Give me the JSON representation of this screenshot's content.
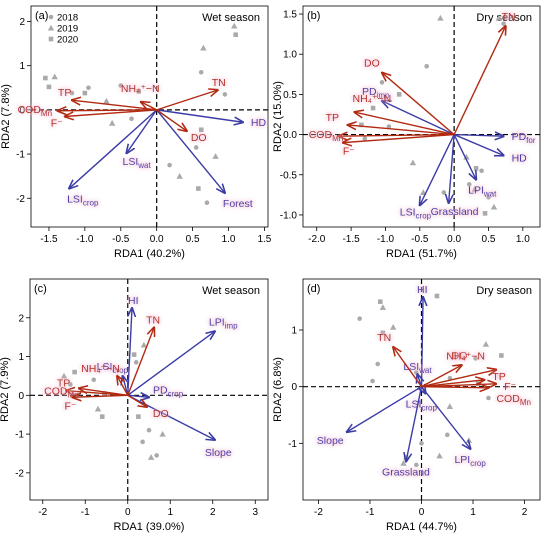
{
  "chart_data": [
    {
      "type": "scatter",
      "panel_label": "(a)",
      "season": "Wet season",
      "xlabel": "RDA1 (40.2%)",
      "ylabel": "RDA2 (7.8%)",
      "xlim": [
        -1.75,
        1.55
      ],
      "ylim": [
        -2.65,
        2.35
      ],
      "xticks": [
        -1.5,
        -1.0,
        -0.5,
        0.0,
        0.5,
        1.0,
        1.5
      ],
      "yticks": [
        -2,
        -1,
        0,
        1,
        2
      ],
      "tick_decimals_x": 1,
      "tick_decimals_y": 0,
      "legend": {
        "placement": "top-left",
        "entries": [
          {
            "label": "2018",
            "marker": "circle"
          },
          {
            "label": "2019",
            "marker": "triangle"
          },
          {
            "label": "2020",
            "marker": "square"
          }
        ]
      },
      "response_arrows": [
        {
          "label": "TN",
          "x": 0.85,
          "y": 0.45
        },
        {
          "label": "TP",
          "x": -1.18,
          "y": 0.22
        },
        {
          "label": "NH₄⁺−N",
          "x": -0.22,
          "y": 0.18
        },
        {
          "label": "CODMn",
          "x": -1.38,
          "y": -0.02
        },
        {
          "label": "F⁻",
          "x": -1.28,
          "y": -0.15
        },
        {
          "label": "DO",
          "x": 0.42,
          "y": -0.48
        }
      ],
      "explanatory_arrows": [
        {
          "label": "HD",
          "x": 1.2,
          "y": -0.28
        },
        {
          "label": "LSIwat",
          "x": -0.42,
          "y": -0.98
        },
        {
          "label": "LSIcrop",
          "x": -1.22,
          "y": -1.78
        },
        {
          "label": "Forest",
          "x": 0.95,
          "y": -1.88
        }
      ],
      "points": [
        {
          "year": "2018",
          "x": -1.18,
          "y": 0.38
        },
        {
          "year": "2018",
          "x": -0.95,
          "y": 0.5
        },
        {
          "year": "2018",
          "x": -0.5,
          "y": 0.55
        },
        {
          "year": "2018",
          "x": -0.35,
          "y": -0.2
        },
        {
          "year": "2018",
          "x": 0.62,
          "y": 0.85
        },
        {
          "year": "2018",
          "x": 0.95,
          "y": 0.35
        },
        {
          "year": "2018",
          "x": 0.7,
          "y": -2.1
        },
        {
          "year": "2018",
          "x": 0.55,
          "y": -0.85
        },
        {
          "year": "2018",
          "x": 0.18,
          "y": -1.25
        },
        {
          "year": "2019",
          "x": -1.42,
          "y": 0.75
        },
        {
          "year": "2019",
          "x": -0.7,
          "y": 0.2
        },
        {
          "year": "2019",
          "x": -0.62,
          "y": -0.3
        },
        {
          "year": "2019",
          "x": 0.65,
          "y": 1.4
        },
        {
          "year": "2019",
          "x": 1.08,
          "y": 1.9
        },
        {
          "year": "2019",
          "x": 0.32,
          "y": -1.5
        },
        {
          "year": "2019",
          "x": 0.82,
          "y": -1.05
        },
        {
          "year": "2020",
          "x": -1.55,
          "y": 0.72
        },
        {
          "year": "2020",
          "x": -1.5,
          "y": 0.52
        },
        {
          "year": "2020",
          "x": -1.0,
          "y": 0.38
        },
        {
          "year": "2020",
          "x": -0.25,
          "y": 0.42
        },
        {
          "year": "2020",
          "x": 1.1,
          "y": 1.7
        },
        {
          "year": "2020",
          "x": 0.62,
          "y": -0.45
        },
        {
          "year": "2020",
          "x": 0.58,
          "y": -1.78
        }
      ]
    },
    {
      "type": "scatter",
      "panel_label": "(b)",
      "season": "Dry season",
      "xlabel": "RDA1 (51.7%)",
      "ylabel": "RDA2 (15.0%)",
      "xlim": [
        -2.2,
        1.25
      ],
      "ylim": [
        -1.15,
        1.6
      ],
      "xticks": [
        -2.0,
        -1.5,
        -1.0,
        -0.5,
        0.0,
        0.5,
        1.0
      ],
      "yticks": [
        -1.0,
        -0.5,
        0.0,
        0.5,
        1.0,
        1.5
      ],
      "tick_decimals_x": 1,
      "tick_decimals_y": 1,
      "legend": null,
      "response_arrows": [
        {
          "label": "TN",
          "x": 0.75,
          "y": 1.35
        },
        {
          "label": "DO",
          "x": -1.05,
          "y": 0.77
        },
        {
          "label": "NH₄⁺−N",
          "x": -1.45,
          "y": 0.28
        },
        {
          "label": "TP",
          "x": -1.55,
          "y": 0.12
        },
        {
          "label": "CODMn",
          "x": -1.68,
          "y": -0.02
        },
        {
          "label": "F⁻",
          "x": -1.62,
          "y": -0.1
        }
      ],
      "explanatory_arrows": [
        {
          "label": "PDimp",
          "x": -1.05,
          "y": 0.42
        },
        {
          "label": "PDfor",
          "x": 0.72,
          "y": -0.02
        },
        {
          "label": "HD",
          "x": 0.72,
          "y": -0.26
        },
        {
          "label": "LPIwat",
          "x": 0.32,
          "y": -0.56
        },
        {
          "label": "LSIcrop",
          "x": -0.5,
          "y": -0.88
        },
        {
          "label": "Grassland",
          "x": -0.08,
          "y": -0.85
        }
      ],
      "points": [
        {
          "year": "2018",
          "x": -1.05,
          "y": 0.65
        },
        {
          "year": "2018",
          "x": -1.3,
          "y": -0.05
        },
        {
          "year": "2018",
          "x": -0.95,
          "y": 0.1
        },
        {
          "year": "2018",
          "x": -0.4,
          "y": 0.85
        },
        {
          "year": "2018",
          "x": -0.15,
          "y": -0.72
        },
        {
          "year": "2018",
          "x": 0.22,
          "y": -0.62
        },
        {
          "year": "2018",
          "x": 0.5,
          "y": -0.78
        },
        {
          "year": "2018",
          "x": 0.72,
          "y": 1.38
        },
        {
          "year": "2018",
          "x": 0.4,
          "y": -0.45
        },
        {
          "year": "2019",
          "x": -0.2,
          "y": 1.45
        },
        {
          "year": "2019",
          "x": -0.6,
          "y": -0.35
        },
        {
          "year": "2019",
          "x": -0.45,
          "y": -0.72
        },
        {
          "year": "2019",
          "x": 0.18,
          "y": -0.28
        },
        {
          "year": "2019",
          "x": 0.65,
          "y": 1.45
        },
        {
          "year": "2019",
          "x": 0.58,
          "y": -0.9
        },
        {
          "year": "2019",
          "x": 0.3,
          "y": -0.68
        },
        {
          "year": "2020",
          "x": -1.18,
          "y": 0.33
        },
        {
          "year": "2020",
          "x": -1.35,
          "y": 0.12
        },
        {
          "year": "2020",
          "x": -0.8,
          "y": 0.5
        },
        {
          "year": "2020",
          "x": 0.45,
          "y": -0.98
        },
        {
          "year": "2020",
          "x": 0.32,
          "y": -0.42
        }
      ]
    },
    {
      "type": "scatter",
      "panel_label": "(c)",
      "season": "Wet season",
      "xlabel": "RDA1 (39.0%)",
      "ylabel": "RDA2 (7.9%)",
      "xlim": [
        -2.3,
        3.3
      ],
      "ylim": [
        -2.7,
        3.0
      ],
      "xticks": [
        -2,
        -1,
        0,
        1,
        2,
        3
      ],
      "yticks": [
        -2,
        -1,
        0,
        1,
        2
      ],
      "tick_decimals_x": 0,
      "tick_decimals_y": 0,
      "legend": null,
      "response_arrows": [
        {
          "label": "TN",
          "x": 0.62,
          "y": 1.75
        },
        {
          "label": "TP",
          "x": -1.15,
          "y": 0.18
        },
        {
          "label": "NH₄⁺−N",
          "x": -0.25,
          "y": 0.5
        },
        {
          "label": "CODMn",
          "x": -1.45,
          "y": 0.12
        },
        {
          "label": "F⁻",
          "x": -1.3,
          "y": -0.05
        },
        {
          "label": "DO",
          "x": 0.45,
          "y": -0.3
        }
      ],
      "explanatory_arrows": [
        {
          "label": "HI",
          "x": 0.1,
          "y": 2.25
        },
        {
          "label": "LSIcrop",
          "x": -0.12,
          "y": 0.5
        },
        {
          "label": "LPIimp",
          "x": 2.05,
          "y": 1.65
        },
        {
          "label": "PDcrop",
          "x": 0.5,
          "y": -0.05
        },
        {
          "label": "Slope",
          "x": 2.05,
          "y": -1.15
        }
      ],
      "points": [
        {
          "year": "2018",
          "x": -1.35,
          "y": 0.28
        },
        {
          "year": "2018",
          "x": -0.8,
          "y": 0.4
        },
        {
          "year": "2018",
          "x": 0.2,
          "y": 0.85
        },
        {
          "year": "2018",
          "x": 0.5,
          "y": -0.9
        },
        {
          "year": "2018",
          "x": 0.68,
          "y": -1.55
        },
        {
          "year": "2018",
          "x": 0.35,
          "y": -1.2
        },
        {
          "year": "2019",
          "x": -1.5,
          "y": 0.5
        },
        {
          "year": "2019",
          "x": -0.7,
          "y": -0.35
        },
        {
          "year": "2019",
          "x": 0.38,
          "y": 1.3
        },
        {
          "year": "2019",
          "x": 0.55,
          "y": -1.6
        },
        {
          "year": "2019",
          "x": 0.82,
          "y": -1.0
        },
        {
          "year": "2020",
          "x": -1.25,
          "y": 0.6
        },
        {
          "year": "2020",
          "x": -0.55,
          "y": 0.05
        },
        {
          "year": "2020",
          "x": -0.6,
          "y": -0.55
        },
        {
          "year": "2020",
          "x": 0.25,
          "y": -0.55
        },
        {
          "year": "2020",
          "x": 0.15,
          "y": 1.05
        }
      ]
    },
    {
      "type": "scatter",
      "panel_label": "(d)",
      "season": "Dry season",
      "xlabel": "RDA1 (44.7%)",
      "ylabel": "RDA2 (6.8%)",
      "xlim": [
        -2.3,
        2.3
      ],
      "ylim": [
        -2.0,
        1.9
      ],
      "xticks": [
        -2,
        -1,
        0,
        1,
        2
      ],
      "yticks": [
        -1,
        0,
        1
      ],
      "tick_decimals_x": 0,
      "tick_decimals_y": 0,
      "legend": null,
      "response_arrows": [
        {
          "label": "TN",
          "x": -0.55,
          "y": 0.7
        },
        {
          "label": "DO",
          "x": 0.78,
          "y": 0.38
        },
        {
          "label": "NH₄⁺−N",
          "x": 1.45,
          "y": 0.3
        },
        {
          "label": "TP",
          "x": 1.22,
          "y": 0.12
        },
        {
          "label": "F⁻",
          "x": 1.45,
          "y": 0.05
        },
        {
          "label": "CODMn",
          "x": 1.3,
          "y": -0.02
        }
      ],
      "explanatory_arrows": [
        {
          "label": "HI",
          "x": 0.03,
          "y": 1.58
        },
        {
          "label": "LSIwat",
          "x": -0.08,
          "y": 0.22
        },
        {
          "label": "LSIcrop",
          "x": 0.08,
          "y": -0.12
        },
        {
          "label": "LPIcrop",
          "x": 0.95,
          "y": -1.1
        },
        {
          "label": "Slope",
          "x": -1.45,
          "y": -0.8
        },
        {
          "label": "Grassland",
          "x": -0.3,
          "y": -1.32
        }
      ],
      "points": [
        {
          "year": "2018",
          "x": -1.2,
          "y": 1.2
        },
        {
          "year": "2018",
          "x": -0.85,
          "y": 0.4
        },
        {
          "year": "2018",
          "x": -0.95,
          "y": 0.1
        },
        {
          "year": "2018",
          "x": -0.1,
          "y": 0.25
        },
        {
          "year": "2018",
          "x": 0.55,
          "y": 0.15
        },
        {
          "year": "2018",
          "x": 1.05,
          "y": 0.5
        },
        {
          "year": "2018",
          "x": 1.3,
          "y": -0.2
        },
        {
          "year": "2018",
          "x": 0.0,
          "y": -1.0
        },
        {
          "year": "2018",
          "x": -0.1,
          "y": -1.38
        },
        {
          "year": "2018",
          "x": 0.5,
          "y": -0.85
        },
        {
          "year": "2019",
          "x": -0.75,
          "y": 1.4
        },
        {
          "year": "2019",
          "x": -0.55,
          "y": 1.05
        },
        {
          "year": "2019",
          "x": -0.35,
          "y": -1.35
        },
        {
          "year": "2019",
          "x": 0.35,
          "y": -1.22
        },
        {
          "year": "2019",
          "x": 1.25,
          "y": 0.75
        },
        {
          "year": "2019",
          "x": 0.55,
          "y": -0.35
        },
        {
          "year": "2019",
          "x": 0.92,
          "y": -0.95
        },
        {
          "year": "2020",
          "x": -0.8,
          "y": 1.5
        },
        {
          "year": "2020",
          "x": -0.75,
          "y": 0.95
        },
        {
          "year": "2020",
          "x": 1.1,
          "y": 0.05
        },
        {
          "year": "2020",
          "x": 1.55,
          "y": 0.55
        },
        {
          "year": "2020",
          "x": 0.3,
          "y": 1.6
        },
        {
          "year": "2020",
          "x": -0.3,
          "y": -1.25
        }
      ]
    }
  ],
  "colors": {
    "response_arrow": "#b22a12",
    "explanatory_arrow": "#3c3ca6",
    "point": "#aaaaaa",
    "label_glow": "#f4b8d2"
  }
}
